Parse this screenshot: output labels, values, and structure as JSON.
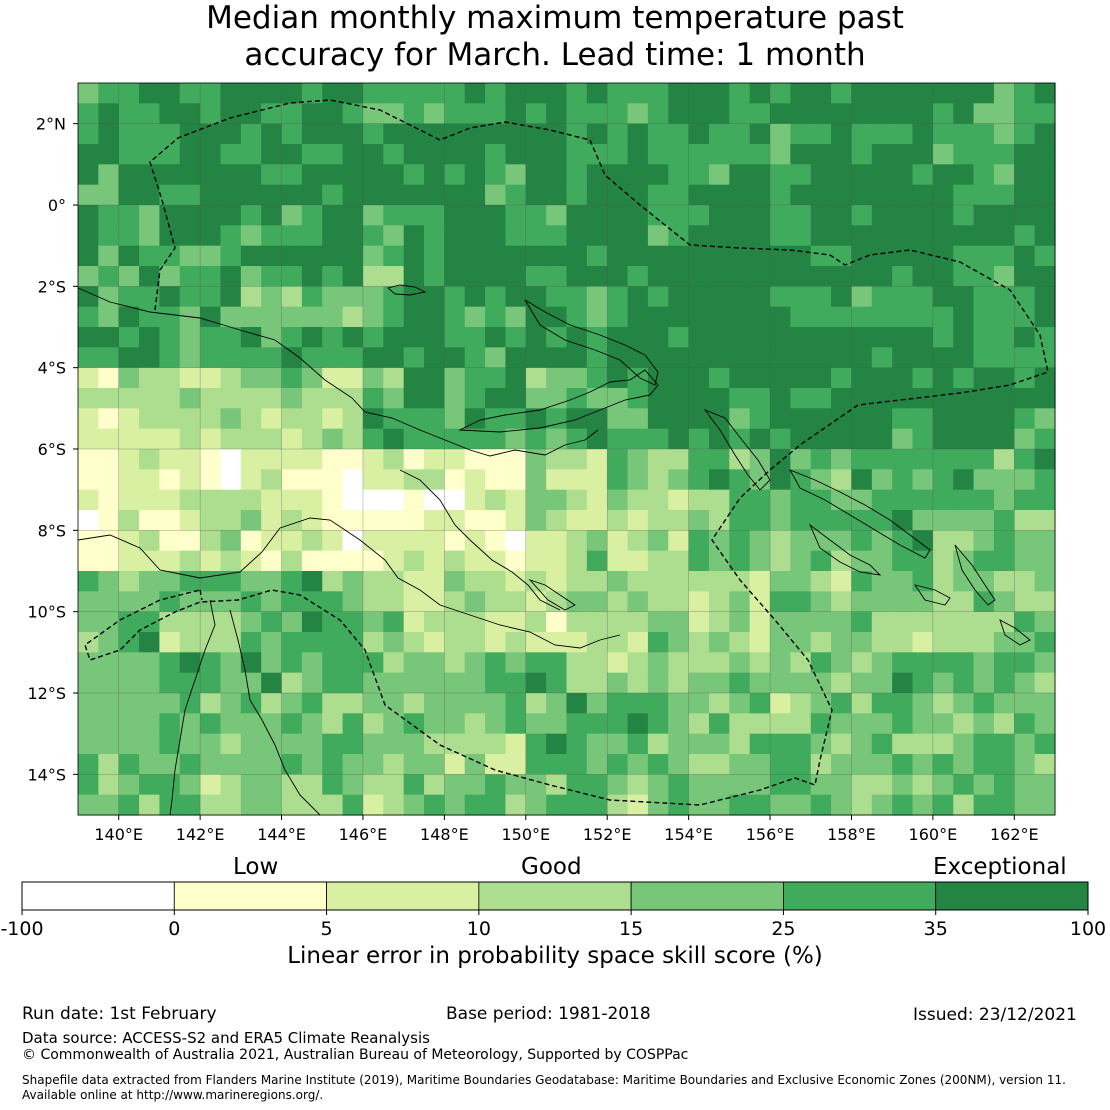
{
  "title": {
    "line1": "Median monthly maximum temperature past",
    "line2": "accuracy for March. Lead time: 1 month"
  },
  "map": {
    "lon_range": [
      139,
      163
    ],
    "lat_range": [
      -15,
      3
    ],
    "lon_ticks": [
      "140°E",
      "142°E",
      "144°E",
      "146°E",
      "148°E",
      "150°E",
      "152°E",
      "154°E",
      "156°E",
      "158°E",
      "160°E",
      "162°E"
    ],
    "lat_ticks": [
      "2°N",
      "0°",
      "2°S",
      "4°S",
      "6°S",
      "8°S",
      "10°S",
      "12°S",
      "14°S"
    ],
    "grid": true
  },
  "colorbar": {
    "categories": [
      "Low",
      "Good",
      "Exceptional"
    ],
    "tick_labels": [
      "-100",
      "0",
      "5",
      "10",
      "15",
      "25",
      "35",
      "100"
    ],
    "colors": [
      "#ffffff",
      "#ffffcc",
      "#d9f0a3",
      "#addd8e",
      "#78c679",
      "#41ab5d",
      "#238443"
    ],
    "label": "Linear error in probability space skill score (%)"
  },
  "footer": {
    "run_date": "Run date: 1st February",
    "base_period": "Base period: 1981-2018",
    "issued": "Issued: 23/12/2021",
    "data_source": "Data source: ACCESS-S2 and ERA5 Climate Reanalysis",
    "copyright": "© Commonwealth of Australia 2021, Australian Bureau of Meteorology, Supported by COSPPac",
    "shapefile_line1": "Shapefile data extracted from Flanders Marine Institute (2019), Maritime Boundaries Geodatabase: Maritime Boundaries and Exclusive Economic Zones (200NM), version 11.",
    "shapefile_line2": "Available online at http://www.marineregions.org/."
  }
}
